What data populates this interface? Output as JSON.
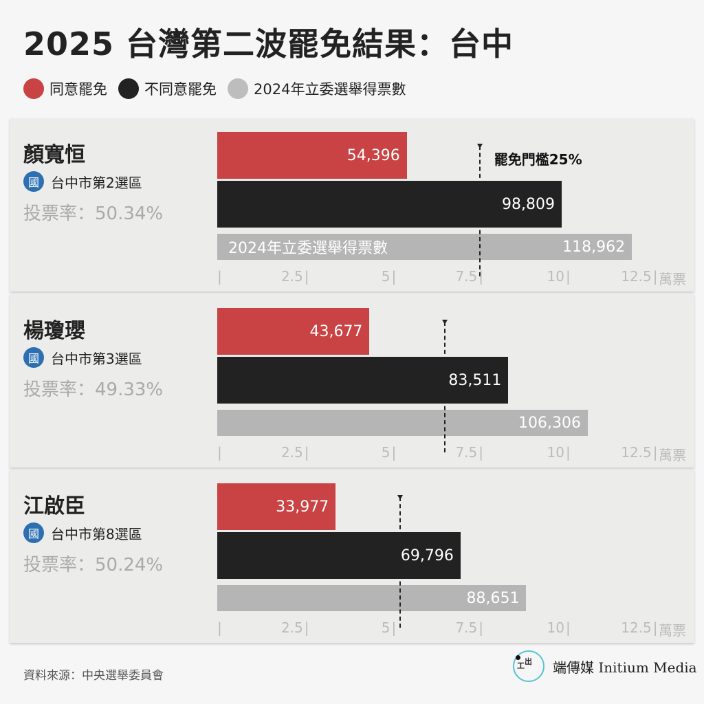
{
  "title": "2025 台灣第二波罷免結果：台中",
  "legend": [
    {
      "label": "同意罷免",
      "color": "#c94244"
    },
    {
      "label": "不同意罷免",
      "color": "#222222"
    },
    {
      "label": "2024年立委選舉得票數",
      "color": "#b5b5b5"
    }
  ],
  "chart_data": {
    "type": "bar",
    "orientation": "horizontal",
    "unit": "萬票",
    "xlim": [
      0,
      12.5
    ],
    "ticks": [
      "2.5",
      "5",
      "7.5",
      "10",
      "12.5"
    ],
    "threshold_label": "罷免門檻25%",
    "gray_bar_label": "2024年立委選舉得票數",
    "series_names": [
      "同意罷免",
      "不同意罷免",
      "2024年立委選舉得票數"
    ],
    "colors": [
      "#c94244",
      "#222222",
      "#b5b5b5"
    ],
    "panels": [
      {
        "name": "顏寬恒",
        "party_badge": "國",
        "district": "台中市第2選區",
        "turnout": "投票率：50.34%",
        "values": [
          54396,
          98809,
          118962
        ],
        "labels": [
          "54,396",
          "98,809",
          "118,962"
        ],
        "threshold": 75100
      },
      {
        "name": "楊瓊瓔",
        "party_badge": "國",
        "district": "台中市第3選區",
        "turnout": "投票率：49.33%",
        "values": [
          43677,
          83511,
          106306
        ],
        "labels": [
          "43,677",
          "83,511",
          "106,306"
        ],
        "threshold": 65100
      },
      {
        "name": "江啟臣",
        "party_badge": "國",
        "district": "台中市第8選區",
        "turnout": "投票率：50.24%",
        "values": [
          33977,
          69796,
          88651
        ],
        "labels": [
          "33,977",
          "69,796",
          "88,651"
        ],
        "threshold": 52300
      }
    ]
  },
  "source": "資料來源：中央選舉委員會",
  "logo": {
    "text": "端傳媒 Initium Media",
    "mark": "端"
  }
}
